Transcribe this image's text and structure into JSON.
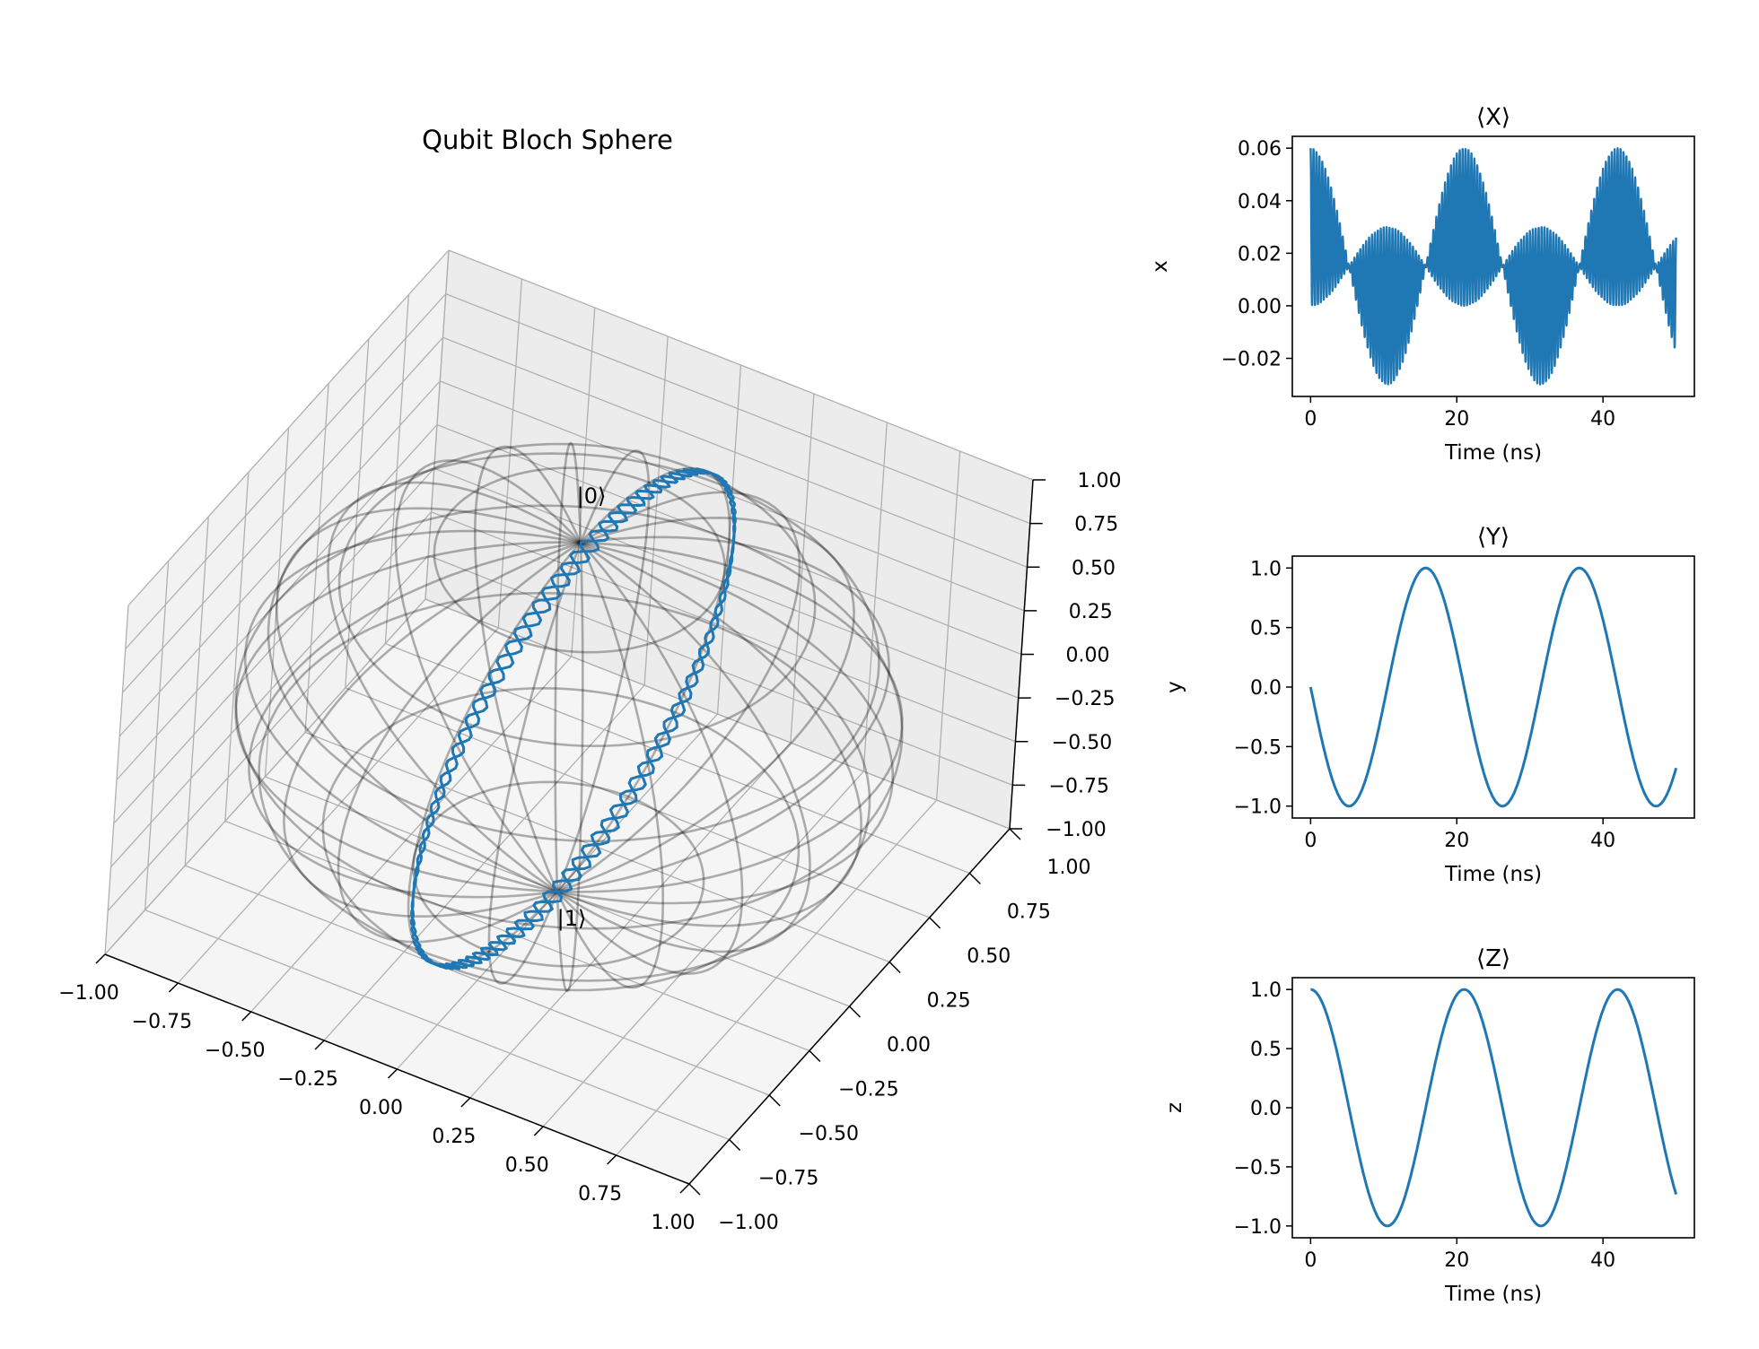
{
  "figure": {
    "colors": {
      "series": "#1f77b4",
      "wire": "#000000",
      "pane": "#f2f2f2",
      "grid": "#b0b0b0"
    }
  },
  "chart_data": [
    {
      "type": "line3d",
      "title": "Qubit Bloch Sphere",
      "xlabel": "",
      "ylabel": "",
      "zlabel": "",
      "xlim": [
        -1,
        1
      ],
      "ylim": [
        -1,
        1
      ],
      "zlim": [
        -1,
        1
      ],
      "x_ticks": [
        "−1.00",
        "−0.75",
        "−0.50",
        "−0.25",
        "0.00",
        "0.25",
        "0.50",
        "0.75",
        "1.00"
      ],
      "y_ticks": [
        "−1.00",
        "−0.75",
        "−0.50",
        "−0.25",
        "0.00",
        "0.25",
        "0.50",
        "0.75",
        "1.00"
      ],
      "z_ticks": [
        "−1.00",
        "−0.75",
        "−0.50",
        "−0.25",
        "0.00",
        "0.25",
        "0.50",
        "0.75",
        "1.00"
      ],
      "annotations": [
        {
          "text": "|0⟩",
          "x": 0,
          "y": 0,
          "z": 1
        },
        {
          "text": "|1⟩",
          "x": 0,
          "y": 0,
          "z": -1
        }
      ],
      "sphere": {
        "radius": 1,
        "wireframe": true
      },
      "trajectory": {
        "description": "Bloch vector traces a great circle in the y–z plane (x ≈ 0)",
        "time_range_ns": [
          0,
          50
        ],
        "rabi_period_ns": 21,
        "x_amplitude": 0.06
      },
      "grid": true
    },
    {
      "type": "line",
      "title": "⟨X⟩",
      "xlabel": "Time (ns)",
      "ylabel": "x",
      "xlim": [
        -2.5,
        52.5
      ],
      "ylim": [
        -0.0345,
        0.0645
      ],
      "xticks": [
        0,
        20,
        40
      ],
      "xtick_labels": [
        "0",
        "20",
        "40"
      ],
      "yticks": [
        -0.02,
        0,
        0.02,
        0.04,
        0.06
      ],
      "ytick_labels": [
        "−0.02",
        "0.00",
        "0.02",
        "0.04",
        "0.06"
      ],
      "series_samples": {
        "x": [
          0,
          5,
          10,
          15,
          21,
          26,
          31,
          36,
          42,
          47,
          50
        ],
        "envelope_max": [
          0.06,
          0.014,
          0.03,
          0.014,
          0.06,
          0.014,
          0.03,
          0.014,
          0.06,
          0.014,
          0.025
        ],
        "envelope_min": [
          0.0,
          0.014,
          -0.03,
          0.014,
          0.0,
          0.014,
          -0.03,
          0.014,
          0.0,
          0.014,
          -0.019
        ]
      },
      "grid": false
    },
    {
      "type": "line",
      "title": "⟨Y⟩",
      "xlabel": "Time (ns)",
      "ylabel": "y",
      "xlim": [
        -2.5,
        52.5
      ],
      "ylim": [
        -1.1,
        1.1
      ],
      "xticks": [
        0,
        20,
        40
      ],
      "xtick_labels": [
        "0",
        "20",
        "40"
      ],
      "yticks": [
        -1,
        -0.5,
        0,
        0.5,
        1
      ],
      "ytick_labels": [
        "−1.0",
        "−0.5",
        "0.0",
        "0.5",
        "1.0"
      ],
      "series_samples": {
        "x": [
          0,
          5.25,
          10.5,
          15.75,
          21,
          26.25,
          31.5,
          36.75,
          42,
          47.25,
          50
        ],
        "y": [
          0.0,
          -1.0,
          0.0,
          1.0,
          0.0,
          -1.0,
          0.0,
          1.0,
          0.0,
          -1.0,
          -0.67
        ]
      },
      "grid": false
    },
    {
      "type": "line",
      "title": "⟨Z⟩",
      "xlabel": "Time (ns)",
      "ylabel": "z",
      "xlim": [
        -2.5,
        52.5
      ],
      "ylim": [
        -1.1,
        1.1
      ],
      "xticks": [
        0,
        20,
        40
      ],
      "xtick_labels": [
        "0",
        "20",
        "40"
      ],
      "yticks": [
        -1,
        -0.5,
        0,
        0.5,
        1
      ],
      "ytick_labels": [
        "−1.0",
        "−0.5",
        "0.0",
        "0.5",
        "1.0"
      ],
      "series_samples": {
        "x": [
          0,
          5.25,
          10.5,
          15.75,
          21,
          26.25,
          31.5,
          36.75,
          42,
          47.25,
          50
        ],
        "y": [
          1.0,
          0.0,
          -1.0,
          0.0,
          1.0,
          0.0,
          -1.0,
          0.0,
          1.0,
          0.0,
          -0.75
        ]
      },
      "grid": false
    }
  ]
}
